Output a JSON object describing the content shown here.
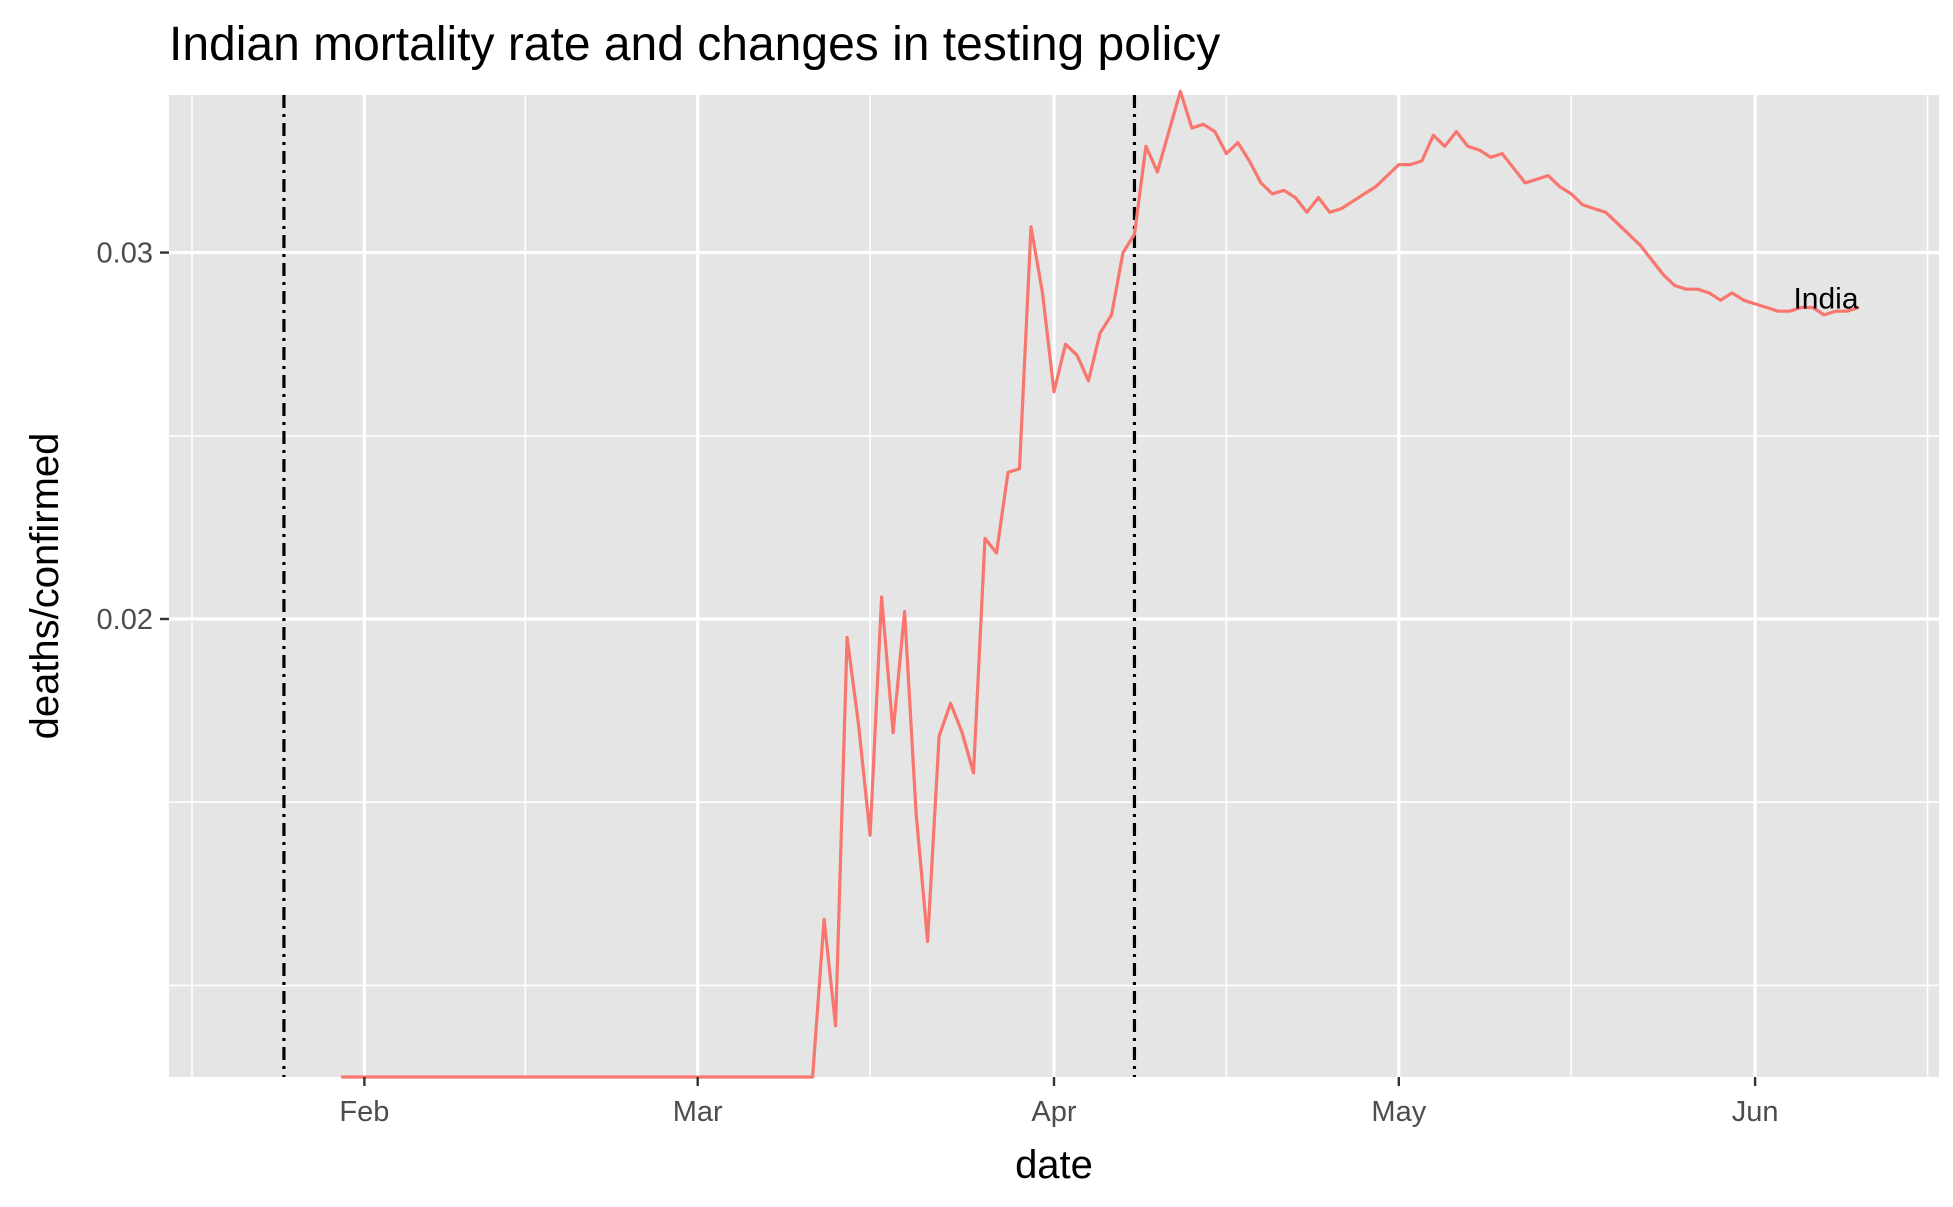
{
  "chart_data": {
    "type": "line",
    "title": "Indian mortality rate and changes in testing policy",
    "xlabel": "date",
    "ylabel": "deaths/confirmed",
    "x_tick_labels": [
      "Feb",
      "Mar",
      "Apr",
      "May",
      "Jun"
    ],
    "x_tick_dates": [
      "2020-02-01",
      "2020-03-01",
      "2020-04-01",
      "2020-05-01",
      "2020-06-01"
    ],
    "y_tick_labels": [
      "0.02",
      "0.03"
    ],
    "y_ticks": [
      0.02,
      0.03
    ],
    "y_minor_ticks": [
      0.01,
      0.015,
      0.025
    ],
    "x_minor_dates": [
      "2020-01-17",
      "2020-02-15",
      "2020-03-16",
      "2020-04-16",
      "2020-05-16",
      "2020-06-16"
    ],
    "xlim": [
      "2020-01-15",
      "2020-06-17"
    ],
    "ylim": [
      0.0075,
      0.0343
    ],
    "grid": true,
    "background": "#e5e5e5",
    "line_color": "#f8766d",
    "vlines": [
      {
        "date": "2020-01-25",
        "style": "dotdash"
      },
      {
        "date": "2020-04-08",
        "style": "dotdash"
      }
    ],
    "series": [
      {
        "name": "India",
        "dates": [
          "2020-01-30",
          "2020-03-11",
          "2020-03-12",
          "2020-03-13",
          "2020-03-14",
          "2020-03-15",
          "2020-03-16",
          "2020-03-17",
          "2020-03-18",
          "2020-03-19",
          "2020-03-20",
          "2020-03-21",
          "2020-03-22",
          "2020-03-23",
          "2020-03-24",
          "2020-03-25",
          "2020-03-26",
          "2020-03-27",
          "2020-03-28",
          "2020-03-29",
          "2020-03-30",
          "2020-03-31",
          "2020-04-01",
          "2020-04-02",
          "2020-04-03",
          "2020-04-04",
          "2020-04-05",
          "2020-04-06",
          "2020-04-07",
          "2020-04-08",
          "2020-04-09",
          "2020-04-10",
          "2020-04-11",
          "2020-04-12",
          "2020-04-13",
          "2020-04-14",
          "2020-04-15",
          "2020-04-16",
          "2020-04-17",
          "2020-04-18",
          "2020-04-19",
          "2020-04-20",
          "2020-04-21",
          "2020-04-22",
          "2020-04-23",
          "2020-04-24",
          "2020-04-25",
          "2020-04-26",
          "2020-04-27",
          "2020-04-28",
          "2020-04-29",
          "2020-04-30",
          "2020-05-01",
          "2020-05-02",
          "2020-05-03",
          "2020-05-04",
          "2020-05-05",
          "2020-05-06",
          "2020-05-07",
          "2020-05-08",
          "2020-05-09",
          "2020-05-10",
          "2020-05-11",
          "2020-05-12",
          "2020-05-13",
          "2020-05-14",
          "2020-05-15",
          "2020-05-16",
          "2020-05-17",
          "2020-05-18",
          "2020-05-19",
          "2020-05-20",
          "2020-05-21",
          "2020-05-22",
          "2020-05-23",
          "2020-05-24",
          "2020-05-25",
          "2020-05-26",
          "2020-05-27",
          "2020-05-28",
          "2020-05-29",
          "2020-05-30",
          "2020-05-31",
          "2020-06-01",
          "2020-06-02",
          "2020-06-03",
          "2020-06-04",
          "2020-06-05",
          "2020-06-06",
          "2020-06-07",
          "2020-06-08",
          "2020-06-09",
          "2020-06-10"
        ],
        "values": [
          0.0075,
          0.0075,
          0.0118,
          0.0089,
          0.0195,
          0.0171,
          0.0141,
          0.0206,
          0.0169,
          0.0202,
          0.0147,
          0.0112,
          0.0168,
          0.0177,
          0.0169,
          0.0158,
          0.0222,
          0.0218,
          0.024,
          0.0241,
          0.0307,
          0.0289,
          0.0262,
          0.0275,
          0.0272,
          0.0265,
          0.0278,
          0.0283,
          0.03,
          0.0305,
          0.0329,
          0.0322,
          0.0333,
          0.0344,
          0.0334,
          0.0335,
          0.0333,
          0.0327,
          0.033,
          0.0325,
          0.0319,
          0.0316,
          0.0317,
          0.0315,
          0.0311,
          0.0315,
          0.0311,
          0.0312,
          0.0314,
          0.0316,
          0.0318,
          0.0321,
          0.0324,
          0.0324,
          0.0325,
          0.0332,
          0.0329,
          0.0333,
          0.0329,
          0.0328,
          0.0326,
          0.0327,
          0.0323,
          0.0319,
          0.032,
          0.0321,
          0.0318,
          0.0316,
          0.0313,
          0.0312,
          0.0311,
          0.0308,
          0.0305,
          0.0302,
          0.0298,
          0.0294,
          0.0291,
          0.029,
          0.029,
          0.0289,
          0.0287,
          0.0289,
          0.0287,
          0.0286,
          0.0285,
          0.0284,
          0.0284,
          0.0285,
          0.0285,
          0.0283,
          0.0284,
          0.0284,
          0.0285
        ]
      }
    ]
  }
}
